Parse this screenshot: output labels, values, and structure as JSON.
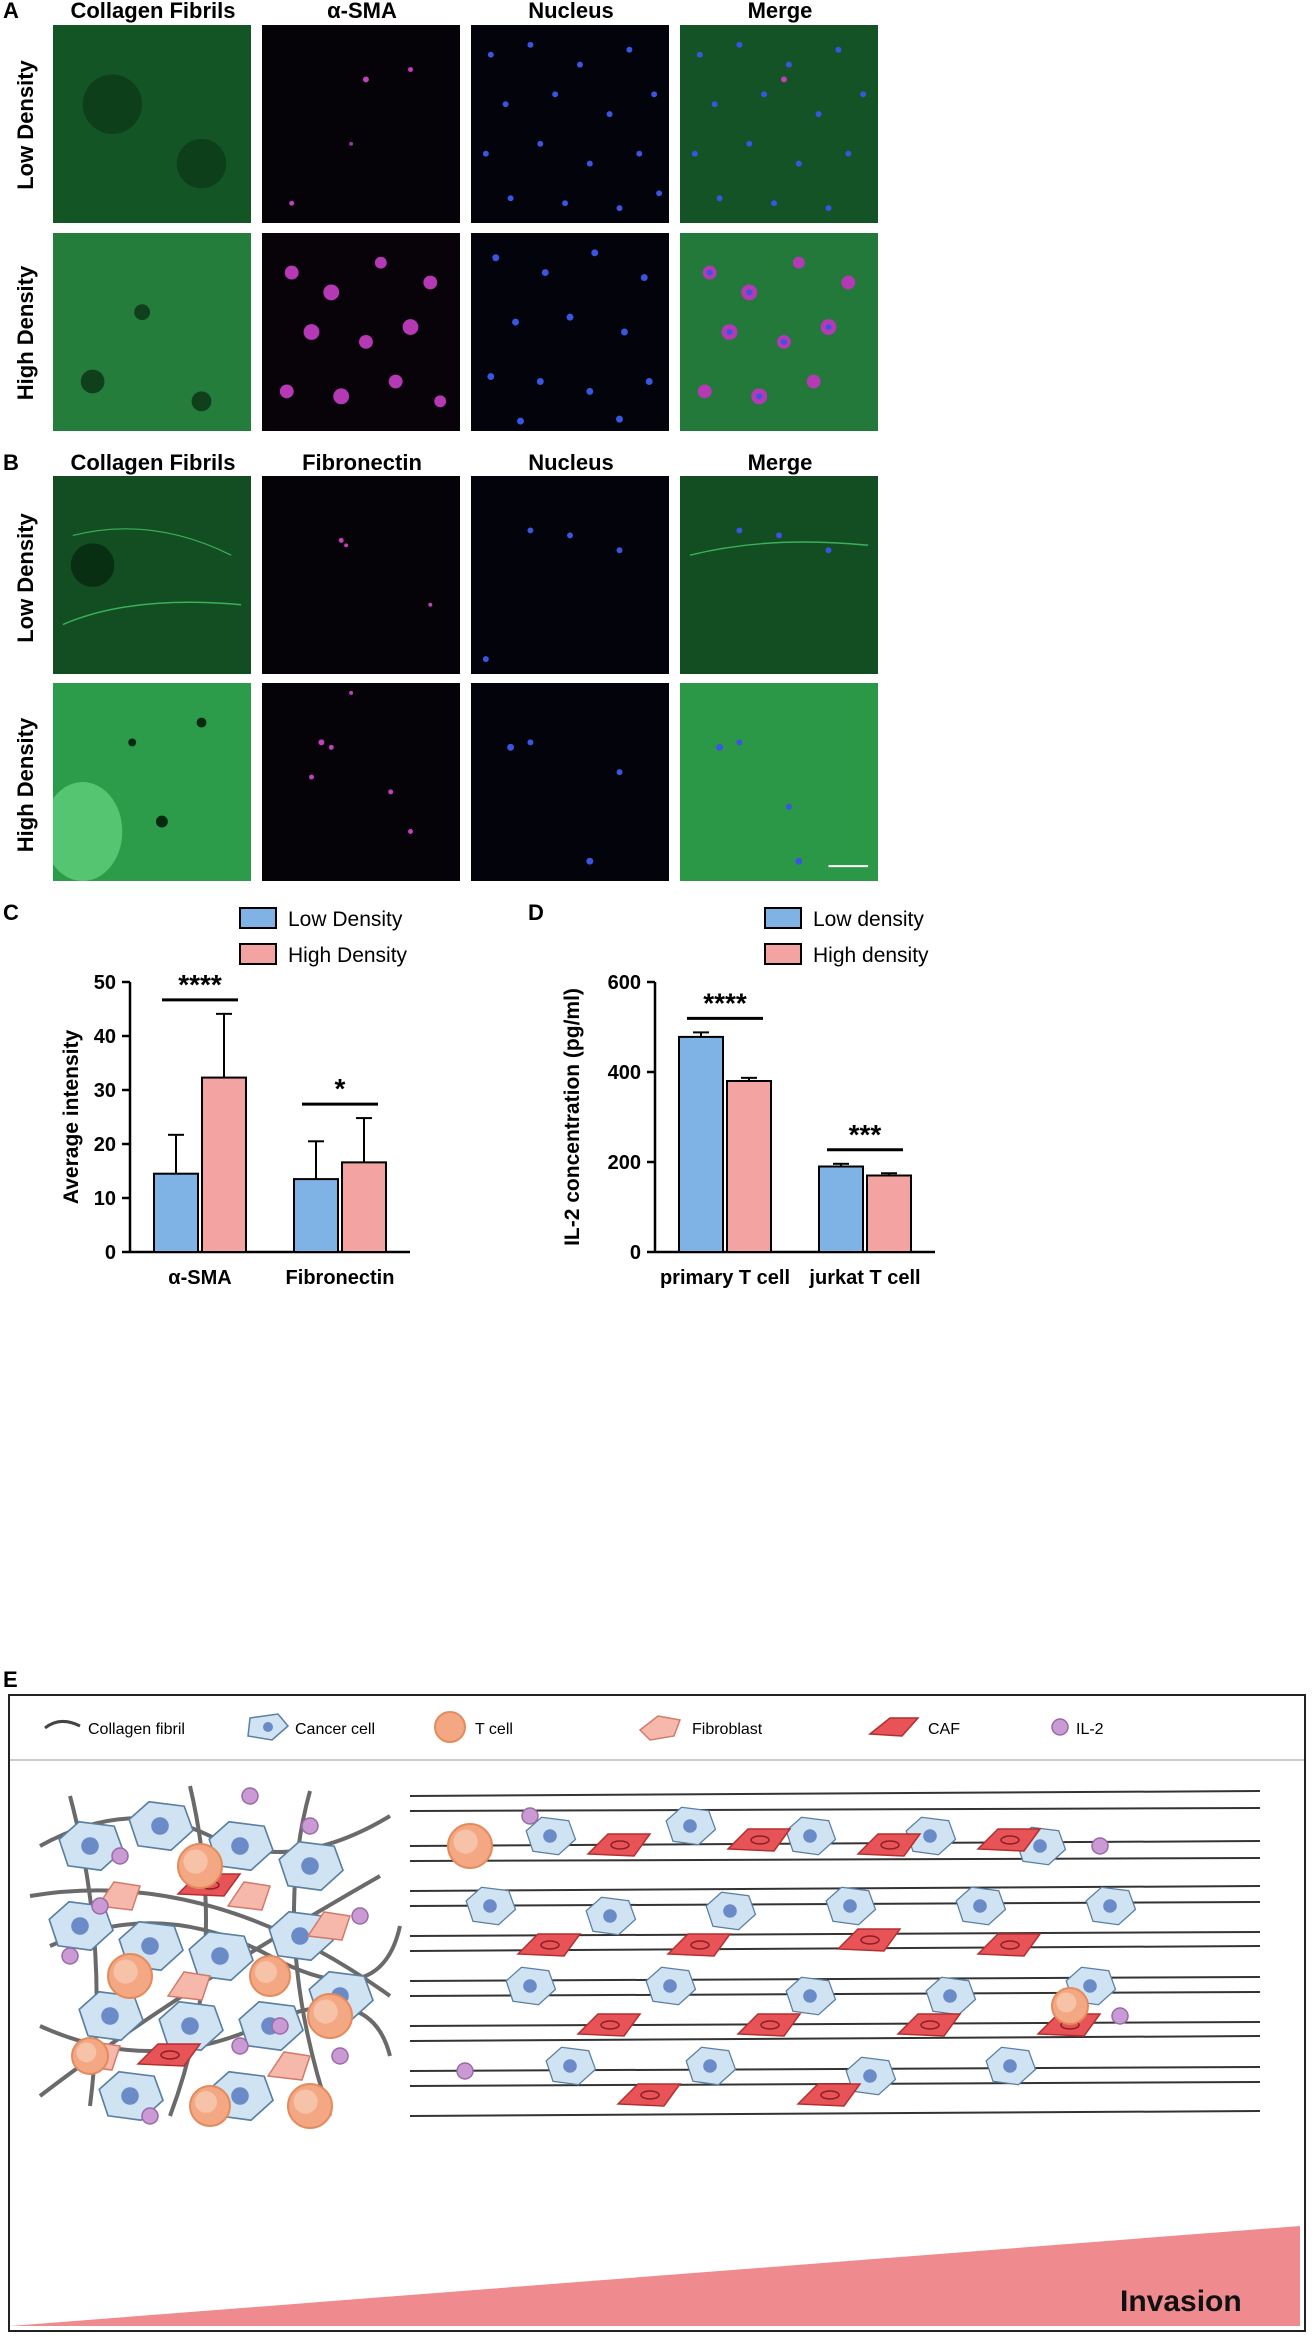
{
  "panels": {
    "A": {
      "letter": "A",
      "columns": [
        "Collagen Fibrils",
        "α-SMA",
        "Nucleus",
        "Merge"
      ],
      "rows": [
        "Low Density",
        "High Density"
      ]
    },
    "B": {
      "letter": "B",
      "columns": [
        "Collagen Fibrils",
        "Fibronectin",
        "Nucleus",
        "Merge"
      ],
      "rows": [
        "Low Density",
        "High Density"
      ]
    },
    "C": {
      "letter": "C"
    },
    "D": {
      "letter": "D"
    },
    "E": {
      "letter": "E",
      "legend": [
        "Collagen fibril",
        "Cancer cell",
        "T cell",
        "Fibroblast",
        "CAF",
        "IL-2"
      ],
      "invasion_label": "Invasion"
    }
  },
  "colors": {
    "low": "#7fb2e5",
    "high": "#f4a3a3",
    "collagen": "#2fa84f",
    "stain": "#c040c0",
    "nucleus": "#3050ff"
  },
  "chart_data": [
    {
      "id": "C",
      "type": "bar",
      "categories": [
        "α-SMA",
        "Fibronectin"
      ],
      "series": [
        {
          "name": "Low Density",
          "values": [
            14.5,
            13.5
          ],
          "errors": [
            7.2,
            7.0
          ]
        },
        {
          "name": "High Density",
          "values": [
            32.3,
            16.6
          ],
          "errors": [
            11.8,
            8.2
          ]
        }
      ],
      "significance": [
        "****",
        "*"
      ],
      "ylabel": "Average intensity",
      "ylim": [
        0,
        50
      ],
      "yticks": [
        0,
        10,
        20,
        30,
        40,
        50
      ],
      "legend_position": "top"
    },
    {
      "id": "D",
      "type": "bar",
      "categories": [
        "primary T cell",
        "jurkat T cell"
      ],
      "series": [
        {
          "name": "Low density",
          "values": [
            478,
            190
          ],
          "errors": [
            10,
            6
          ]
        },
        {
          "name": "High density",
          "values": [
            380,
            170
          ],
          "errors": [
            7,
            5
          ]
        }
      ],
      "significance": [
        "****",
        "***"
      ],
      "ylabel": "IL-2 concentration (pg/ml)",
      "ylim": [
        0,
        600
      ],
      "yticks": [
        0,
        200,
        400,
        600
      ],
      "legend_position": "top"
    }
  ]
}
